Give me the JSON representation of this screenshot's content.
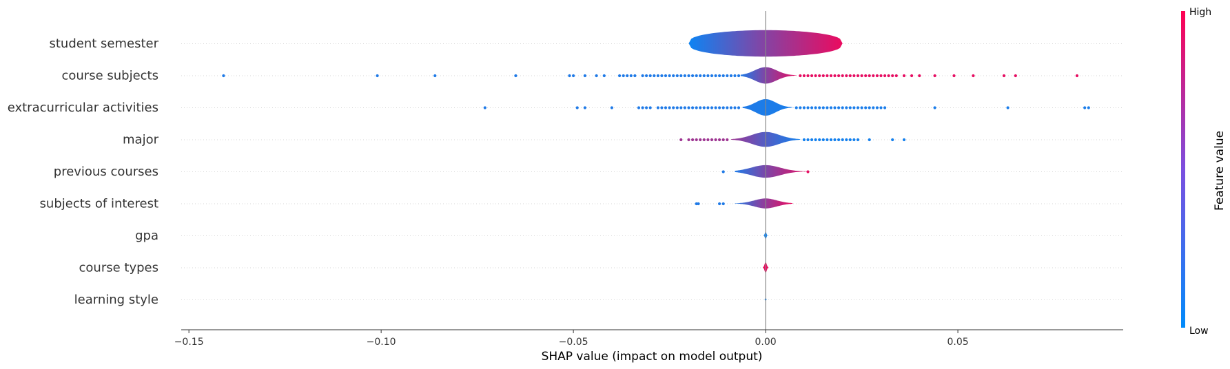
{
  "chart_data": {
    "type": "scatter",
    "subtype": "shap-summary-violin",
    "xlabel": "SHAP value (impact on model output)",
    "xlim": [
      -0.152,
      0.093
    ],
    "x_ticks": [
      -0.15,
      -0.1,
      -0.05,
      0.0,
      0.05
    ],
    "x_tick_labels": [
      "−0.15",
      "−0.10",
      "−0.05",
      "0.00",
      "0.05"
    ],
    "colorbar": {
      "label": "Feature value",
      "high_label": "High",
      "low_label": "Low",
      "low_color": "#008bfb",
      "high_color": "#ff0051"
    },
    "grid": false,
    "features": [
      {
        "name": "student semester",
        "range": [
          -0.02,
          0.02
        ],
        "violin_halfwidth": 0.8,
        "color_low_side": 0.05,
        "color_high_side": 0.92,
        "outliers_low": [],
        "outliers_high": []
      },
      {
        "name": "course subjects",
        "range": [
          -0.0065,
          0.008
        ],
        "violin_halfwidth": 0.5,
        "color_low_side": 0.12,
        "color_high_side": 0.9,
        "outliers_low": [
          -0.141,
          -0.101,
          -0.086,
          -0.065,
          -0.051,
          -0.05,
          -0.047,
          -0.044,
          -0.042,
          -0.038,
          -0.037,
          -0.036,
          -0.035,
          -0.034,
          -0.032,
          -0.031,
          -0.03,
          -0.029,
          -0.028,
          -0.027,
          -0.026,
          -0.025,
          -0.024,
          -0.023,
          -0.022,
          -0.021,
          -0.02,
          -0.019,
          -0.018,
          -0.017,
          -0.016,
          -0.015,
          -0.014,
          -0.013,
          -0.012,
          -0.011,
          -0.01,
          -0.009,
          -0.008,
          -0.007
        ],
        "outliers_high": [
          0.009,
          0.01,
          0.011,
          0.012,
          0.013,
          0.014,
          0.015,
          0.016,
          0.017,
          0.018,
          0.019,
          0.02,
          0.021,
          0.022,
          0.023,
          0.024,
          0.025,
          0.026,
          0.027,
          0.028,
          0.029,
          0.03,
          0.031,
          0.032,
          0.033,
          0.034,
          0.036,
          0.038,
          0.04,
          0.044,
          0.049,
          0.054,
          0.062,
          0.065,
          0.081
        ]
      },
      {
        "name": "extracurricular activities",
        "range": [
          -0.006,
          0.007
        ],
        "violin_halfwidth": 0.5,
        "color_low_side": 0.12,
        "color_high_side": 0.1,
        "outliers_low": [
          -0.073,
          -0.049,
          -0.047,
          -0.04,
          -0.033,
          -0.032,
          -0.031,
          -0.03,
          -0.028,
          -0.027,
          -0.026,
          -0.025,
          -0.024,
          -0.023,
          -0.022,
          -0.021,
          -0.02,
          -0.019,
          -0.018,
          -0.017,
          -0.016,
          -0.015,
          -0.014,
          -0.013,
          -0.012,
          -0.011,
          -0.01,
          -0.009,
          -0.008,
          -0.007
        ],
        "outliers_high": [
          0.008,
          0.009,
          0.01,
          0.011,
          0.012,
          0.013,
          0.014,
          0.015,
          0.016,
          0.017,
          0.018,
          0.019,
          0.02,
          0.021,
          0.022,
          0.023,
          0.024,
          0.025,
          0.026,
          0.027,
          0.028,
          0.029,
          0.03,
          0.031,
          0.044,
          0.063,
          0.083,
          0.084
        ]
      },
      {
        "name": "major",
        "range": [
          -0.009,
          0.009
        ],
        "violin_halfwidth": 0.45,
        "color_low_side": 0.62,
        "color_high_side": 0.08,
        "outliers_low": [
          -0.022,
          -0.02,
          -0.019,
          -0.018,
          -0.017,
          -0.016,
          -0.015,
          -0.014,
          -0.013,
          -0.012,
          -0.011,
          -0.01
        ],
        "outliers_high": [
          0.01,
          0.011,
          0.012,
          0.013,
          0.014,
          0.015,
          0.016,
          0.017,
          0.018,
          0.019,
          0.02,
          0.021,
          0.022,
          0.023,
          0.024,
          0.027,
          0.033,
          0.036
        ]
      },
      {
        "name": "previous courses",
        "range": [
          -0.008,
          0.011
        ],
        "violin_halfwidth": 0.38,
        "color_low_side": 0.12,
        "color_high_side": 0.9,
        "outliers_low": [
          -0.011
        ],
        "outliers_high": [
          0.011
        ]
      },
      {
        "name": "subjects of interest",
        "range": [
          -0.008,
          0.007
        ],
        "violin_halfwidth": 0.3,
        "color_low_side": 0.12,
        "color_high_side": 0.92,
        "outliers_low": [
          -0.018,
          -0.0175,
          -0.012,
          -0.011
        ],
        "outliers_high": []
      },
      {
        "name": "gpa",
        "range": [
          -0.0005,
          0.0005
        ],
        "violin_halfwidth": 0.22,
        "color_low_side": 0.05,
        "color_high_side": 0.05,
        "outliers_low": [],
        "outliers_high": []
      },
      {
        "name": "course types",
        "range": [
          -0.0007,
          0.0007
        ],
        "violin_halfwidth": 0.32,
        "color_low_side": 0.92,
        "color_high_side": 0.92,
        "outliers_low": [],
        "outliers_high": []
      },
      {
        "name": "learning style",
        "range": [
          -0.0003,
          0.0003
        ],
        "violin_halfwidth": 0.1,
        "color_low_side": 0.05,
        "color_high_side": 0.05,
        "outliers_low": [],
        "outliers_high": []
      }
    ]
  }
}
